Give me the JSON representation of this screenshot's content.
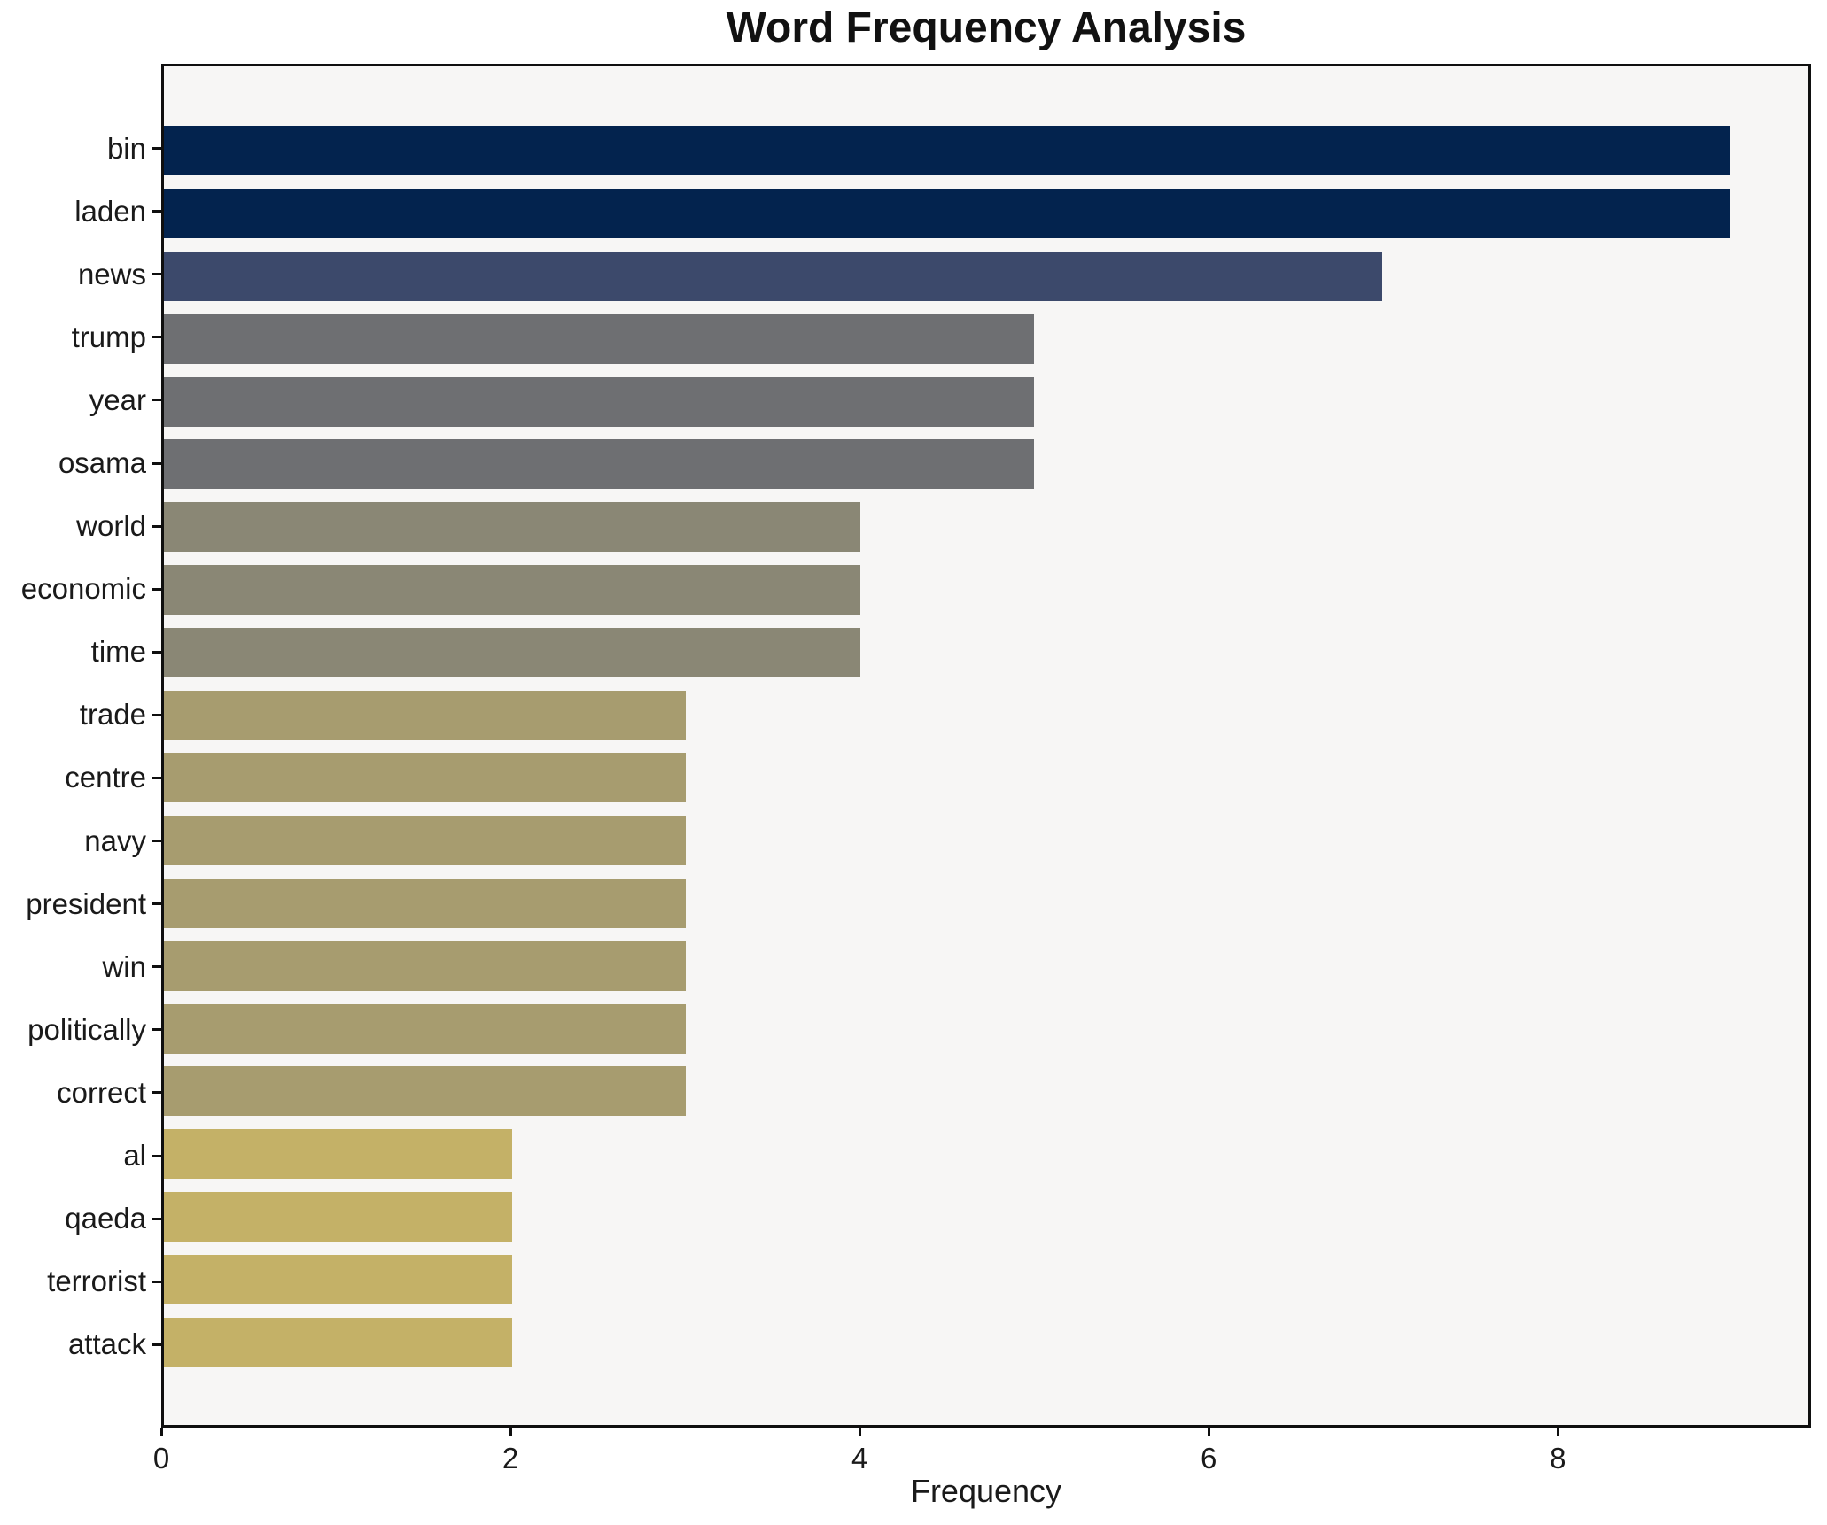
{
  "title": "Word Frequency Analysis",
  "chart_data": {
    "type": "bar",
    "orientation": "horizontal",
    "title": "Word Frequency Analysis",
    "xlabel": "Frequency",
    "ylabel": "",
    "categories": [
      "bin",
      "laden",
      "news",
      "trump",
      "year",
      "osama",
      "world",
      "economic",
      "time",
      "trade",
      "centre",
      "navy",
      "president",
      "win",
      "politically",
      "correct",
      "al",
      "qaeda",
      "terrorist",
      "attack"
    ],
    "values": [
      9,
      9,
      7,
      5,
      5,
      5,
      4,
      4,
      4,
      3,
      3,
      3,
      3,
      3,
      3,
      3,
      2,
      2,
      2,
      2
    ],
    "bar_colors": [
      "#03234E",
      "#03234E",
      "#3C496B",
      "#6E6F72",
      "#6E6F72",
      "#6E6F72",
      "#8A8775",
      "#8A8775",
      "#8A8775",
      "#A79C6F",
      "#A79C6F",
      "#A79C6F",
      "#A79C6F",
      "#A79C6F",
      "#A79C6F",
      "#A79C6F",
      "#C4B167",
      "#C4B167",
      "#C4B167",
      "#C4B167"
    ],
    "x_ticks": [
      0,
      2,
      4,
      6,
      8
    ],
    "xlim": [
      0,
      9.45
    ],
    "grid": false,
    "legend_position": null,
    "colors": {
      "plot_background": "#f7f6f5",
      "figure_background": "#ffffff",
      "axis": "#0f0f0f",
      "text": "#1a1a1a"
    }
  }
}
